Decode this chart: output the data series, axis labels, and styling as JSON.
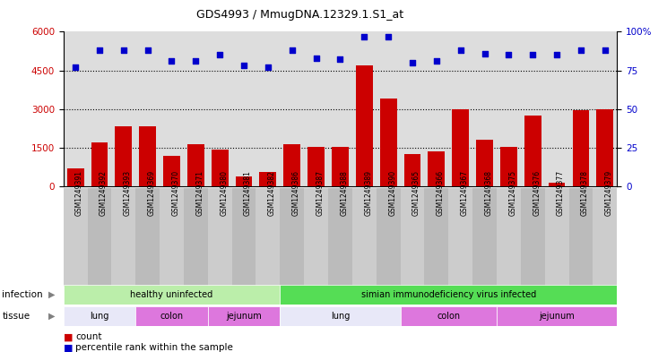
{
  "title": "GDS4993 / MmugDNA.12329.1.S1_at",
  "samples": [
    "GSM1249391",
    "GSM1249392",
    "GSM1249393",
    "GSM1249369",
    "GSM1249370",
    "GSM1249371",
    "GSM1249380",
    "GSM1249381",
    "GSM1249382",
    "GSM1249386",
    "GSM1249387",
    "GSM1249388",
    "GSM1249389",
    "GSM1249390",
    "GSM1249365",
    "GSM1249366",
    "GSM1249367",
    "GSM1249368",
    "GSM1249375",
    "GSM1249376",
    "GSM1249377",
    "GSM1249378",
    "GSM1249379"
  ],
  "counts": [
    700,
    1700,
    2350,
    2350,
    1200,
    1650,
    1450,
    400,
    550,
    1650,
    1550,
    1550,
    4700,
    3400,
    1250,
    1350,
    3000,
    1800,
    1550,
    2750,
    150,
    2950,
    3000
  ],
  "percentiles": [
    77,
    88,
    88,
    88,
    81,
    81,
    85,
    78,
    77,
    88,
    83,
    82,
    97,
    97,
    80,
    81,
    88,
    86,
    85,
    85,
    85,
    88,
    88
  ],
  "bar_color": "#cc0000",
  "dot_color": "#0000cc",
  "ylim_left": [
    0,
    6000
  ],
  "ylim_right": [
    0,
    100
  ],
  "yticks_left": [
    0,
    1500,
    3000,
    4500,
    6000
  ],
  "ytick_labels_left": [
    "0",
    "1500",
    "3000",
    "4500",
    "6000"
  ],
  "yticks_right": [
    0,
    25,
    50,
    75,
    100
  ],
  "ytick_labels_right": [
    "0",
    "25",
    "50",
    "75",
    "100%"
  ],
  "hgrid_values": [
    1500,
    3000,
    4500
  ],
  "infection_groups": [
    {
      "label": "healthy uninfected",
      "start": 0,
      "end": 9,
      "color": "#bbeeaa"
    },
    {
      "label": "simian immunodeficiency virus infected",
      "start": 9,
      "end": 23,
      "color": "#55dd55"
    }
  ],
  "tissue_groups": [
    {
      "label": "lung",
      "start": 0,
      "end": 3,
      "color": "#e8e8f8"
    },
    {
      "label": "colon",
      "start": 3,
      "end": 6,
      "color": "#dd77dd"
    },
    {
      "label": "jejunum",
      "start": 6,
      "end": 9,
      "color": "#dd77dd"
    },
    {
      "label": "lung",
      "start": 9,
      "end": 14,
      "color": "#e8e8f8"
    },
    {
      "label": "colon",
      "start": 14,
      "end": 18,
      "color": "#dd77dd"
    },
    {
      "label": "jejunum",
      "start": 18,
      "end": 23,
      "color": "#dd77dd"
    }
  ],
  "plot_bg": "#dddddd",
  "xtick_bg_even": "#cccccc",
  "xtick_bg_odd": "#bbbbbb",
  "infection_label": "infection",
  "tissue_label": "tissue",
  "legend_count": "count",
  "legend_pct": "percentile rank within the sample"
}
